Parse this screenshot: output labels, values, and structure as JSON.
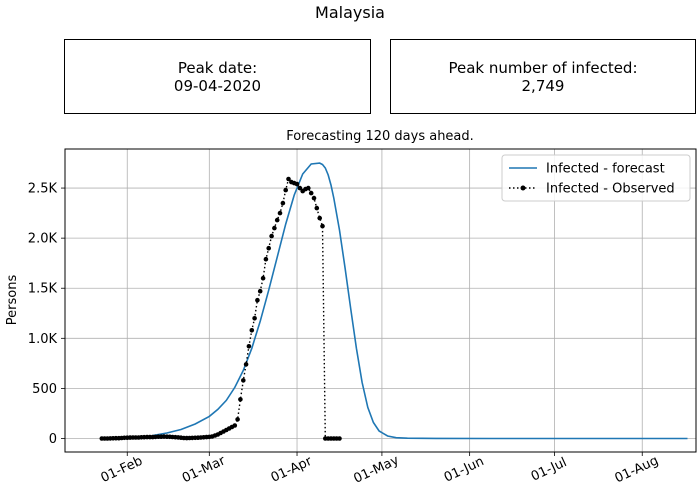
{
  "title": "Malaysia",
  "peak_date": {
    "label": "Peak date:",
    "value": "09-04-2020"
  },
  "peak_infected": {
    "label": "Peak number of infected:",
    "value": "2,749"
  },
  "chart_data": {
    "type": "line",
    "title": "Forecasting 120 days ahead.",
    "xlabel": "",
    "ylabel": "Persons",
    "x_ticks": [
      {
        "label": "01-Feb",
        "day": 31
      },
      {
        "label": "01-Mar",
        "day": 60
      },
      {
        "label": "01-Apr",
        "day": 91
      },
      {
        "label": "01-May",
        "day": 121
      },
      {
        "label": "01-Jun",
        "day": 152
      },
      {
        "label": "01-Jul",
        "day": 182
      },
      {
        "label": "01-Aug",
        "day": 213
      }
    ],
    "y_ticks": [
      {
        "label": "0",
        "value": 0
      },
      {
        "label": "500",
        "value": 500
      },
      {
        "label": "1.0K",
        "value": 1000
      },
      {
        "label": "1.5K",
        "value": 1500
      },
      {
        "label": "2.0K",
        "value": 2000
      },
      {
        "label": "2.5K",
        "value": 2500
      }
    ],
    "xlim": [
      9,
      232
    ],
    "ylim": [
      -135,
      2890
    ],
    "grid": true,
    "legend_position": "top-right",
    "series": [
      {
        "name": "Infected - forecast",
        "color": "#1f77b4",
        "style": "solid",
        "x_days": [
          40,
          45,
          50,
          55,
          60,
          63,
          66,
          69,
          72,
          75,
          78,
          81,
          84,
          87,
          90,
          93,
          96,
          99,
          100,
          101,
          102,
          103,
          104,
          106,
          108,
          110,
          112,
          114,
          116,
          118,
          120,
          123,
          126,
          130,
          140,
          160,
          180,
          200,
          220,
          229
        ],
        "values": [
          30,
          55,
          90,
          145,
          220,
          290,
          380,
          510,
          680,
          900,
          1170,
          1480,
          1810,
          2140,
          2430,
          2640,
          2740,
          2749,
          2735,
          2700,
          2630,
          2530,
          2400,
          2080,
          1700,
          1290,
          900,
          560,
          310,
          160,
          75,
          25,
          8,
          3,
          1,
          0,
          0,
          0,
          0,
          0
        ]
      },
      {
        "name": "Infected - Observed",
        "color": "#000000",
        "style": "dotted-with-markers",
        "x_days": [
          22,
          23,
          24,
          25,
          26,
          27,
          28,
          29,
          30,
          31,
          32,
          33,
          34,
          35,
          36,
          37,
          38,
          39,
          40,
          41,
          42,
          43,
          44,
          45,
          46,
          47,
          48,
          49,
          50,
          51,
          52,
          53,
          54,
          55,
          56,
          57,
          58,
          59,
          60,
          61,
          62,
          63,
          64,
          65,
          66,
          67,
          68,
          69,
          70,
          71,
          72,
          73,
          74,
          75,
          76,
          77,
          78,
          79,
          80,
          81,
          82,
          83,
          84,
          85,
          86,
          87,
          88,
          89,
          90,
          91,
          92,
          93,
          94,
          95,
          96,
          97,
          98,
          99,
          100,
          101,
          102,
          103,
          104,
          105,
          106
        ],
        "values": [
          0,
          0,
          0,
          1,
          2,
          3,
          3,
          5,
          7,
          8,
          9,
          10,
          10,
          10,
          12,
          13,
          14,
          14,
          14,
          16,
          18,
          18,
          19,
          18,
          17,
          15,
          13,
          11,
          8,
          5,
          4,
          5,
          6,
          7,
          8,
          10,
          12,
          14,
          16,
          20,
          30,
          40,
          55,
          70,
          85,
          100,
          115,
          130,
          190,
          390,
          580,
          740,
          920,
          1080,
          1200,
          1380,
          1470,
          1600,
          1790,
          1900,
          2020,
          2100,
          2180,
          2250,
          2350,
          2480,
          2590,
          2560,
          2550,
          2540,
          2500,
          2470,
          2490,
          2500,
          2450,
          2400,
          2300,
          2200,
          2120,
          0,
          0,
          0,
          0,
          0,
          0
        ]
      }
    ]
  }
}
